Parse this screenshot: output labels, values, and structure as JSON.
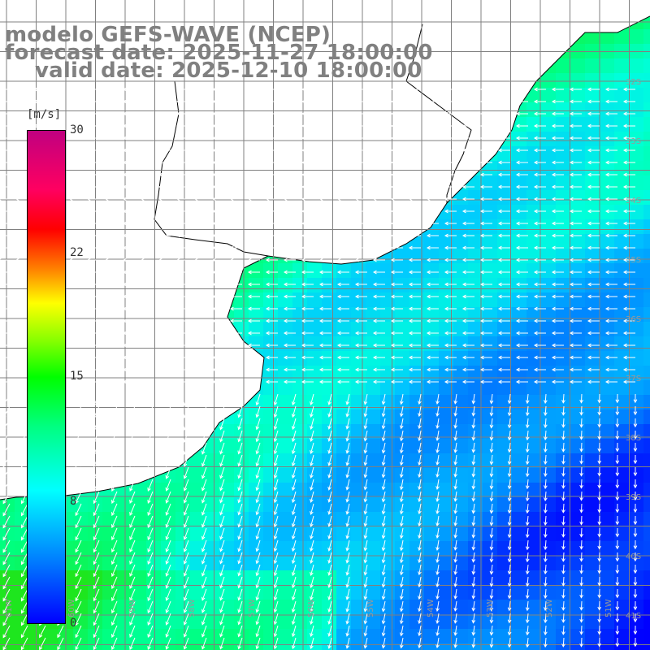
{
  "title": {
    "line1": "modelo GEFS-WAVE (NCEP)",
    "line2": "forecast date: 2025-11-27 18:00:00",
    "line3": "    valid date: 2025-12-10 18:00:00"
  },
  "legend": {
    "unit": "[m/s]",
    "ticks": [
      "30",
      "22",
      "15",
      "8",
      "0"
    ],
    "colors": [
      "#0000ff",
      "#0080ff",
      "#00ffff",
      "#00ff80",
      "#00ff00",
      "#ffff00",
      "#ff8000",
      "#ff0000",
      "#c00080"
    ]
  },
  "map": {
    "lat_labels": [
      "32S",
      "33S",
      "34S",
      "35S",
      "36S",
      "37S",
      "38S",
      "39S",
      "40S",
      "41S"
    ],
    "lon_labels": [
      "61W",
      "60W",
      "59W",
      "58W",
      "57W",
      "56W",
      "55W",
      "54W",
      "53W",
      "52W",
      "51W"
    ],
    "gridline_color": "#808080",
    "land_color": "#ffffff",
    "coast_color": "#000000",
    "arrow_color": "#ffffff"
  }
}
